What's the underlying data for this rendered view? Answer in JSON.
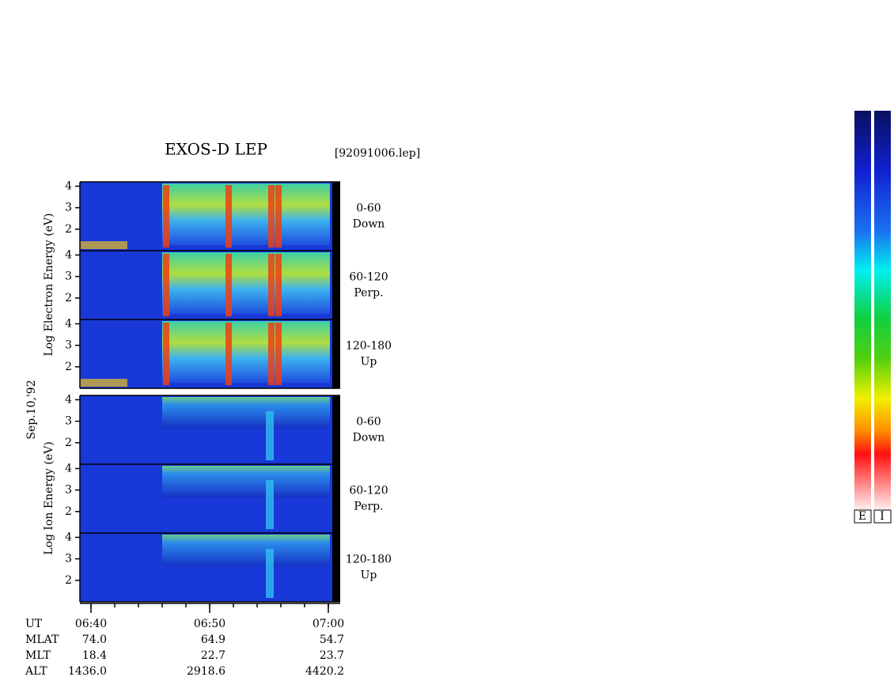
{
  "title": "EXOS-D LEP",
  "file": "[92091006.lep]",
  "electron_axis_label": "Log  Electron  Energy (eV)",
  "ion_axis_label": "Log  Ion  Energy (eV)",
  "date": "Sep.10,'92",
  "ylim": [
    1,
    4.2
  ],
  "yticks": [
    2,
    3,
    4
  ],
  "panels": [
    {
      "angle": "0-60",
      "direction": "Down"
    },
    {
      "angle": "60-120",
      "direction": "Perp."
    },
    {
      "angle": "120-180",
      "direction": "Up"
    },
    {
      "angle": "0-60",
      "direction": "Down"
    },
    {
      "angle": "60-120",
      "direction": "Perp."
    },
    {
      "angle": "120-180",
      "direction": "Up"
    }
  ],
  "time_label": "UT",
  "times": [
    "06:40",
    "06:50",
    "07:00"
  ],
  "table": {
    "rows": [
      [
        "MLAT",
        "74.0",
        "64.9",
        "54.7"
      ],
      [
        "MLT",
        "18.4",
        "22.7",
        "23.7"
      ],
      [
        "ALT",
        "1436.0",
        "2918.6",
        "4420.2"
      ]
    ]
  },
  "colorbar_labels": [
    "E",
    "I"
  ]
}
